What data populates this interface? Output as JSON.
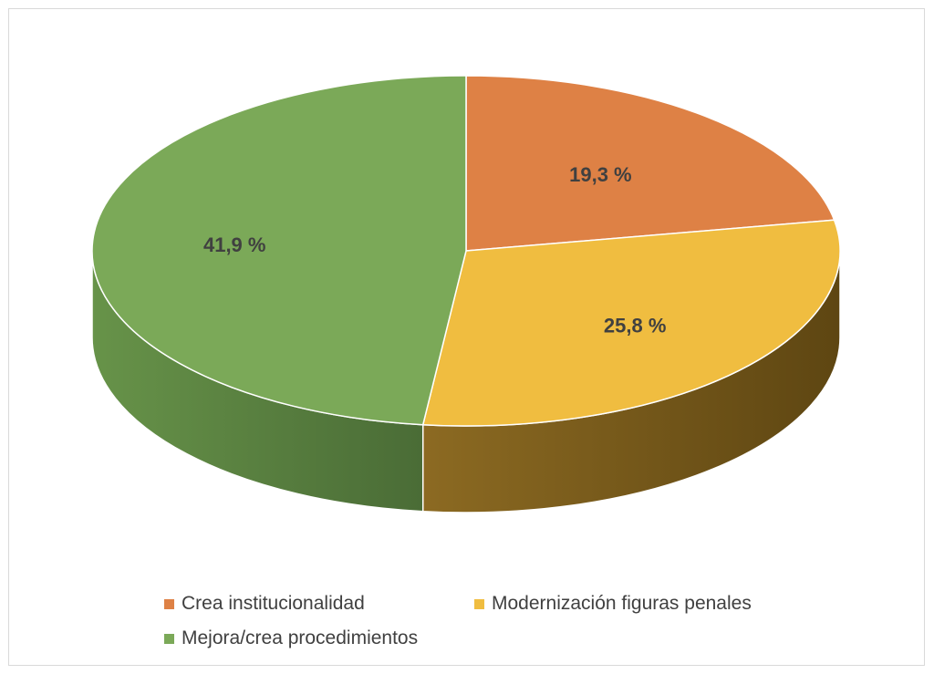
{
  "chart_data": {
    "type": "pie",
    "title": "",
    "slices": [
      {
        "name": "Crea institucionalidad",
        "value": 19.3,
        "label": "19,3 %",
        "color": "#DE8145"
      },
      {
        "name": "Modernización figuras penales",
        "value": 25.8,
        "label": "25,8 %",
        "color": "#F0BD40"
      },
      {
        "name": "Mejora/crea procedimientos",
        "value": 41.9,
        "label": "41,9 %",
        "color": "#7BA958"
      }
    ],
    "style": "3d",
    "legend_position": "bottom"
  }
}
